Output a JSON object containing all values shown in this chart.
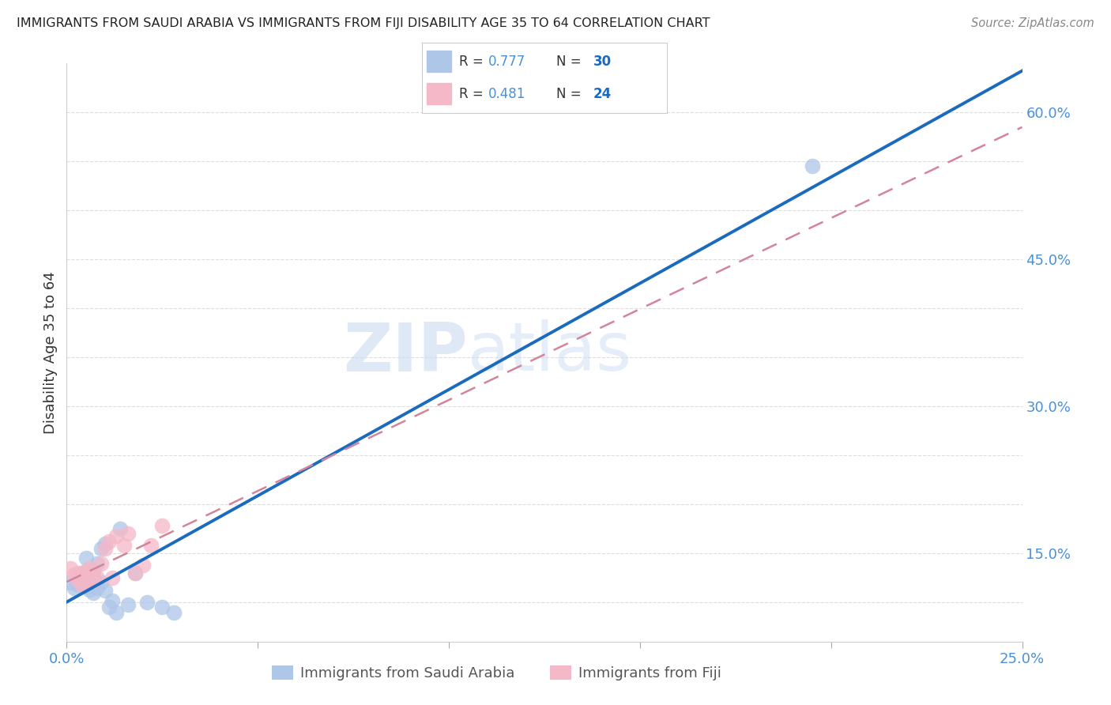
{
  "title": "IMMIGRANTS FROM SAUDI ARABIA VS IMMIGRANTS FROM FIJI DISABILITY AGE 35 TO 64 CORRELATION CHART",
  "source": "Source: ZipAtlas.com",
  "ylabel": "Disability Age 35 to 64",
  "xlim": [
    0.0,
    0.25
  ],
  "ylim": [
    0.06,
    0.65
  ],
  "x_tick_positions": [
    0.0,
    0.05,
    0.1,
    0.15,
    0.2,
    0.25
  ],
  "x_tick_labels": [
    "0.0%",
    "",
    "",
    "",
    "",
    "25.0%"
  ],
  "y_tick_positions": [
    0.1,
    0.15,
    0.2,
    0.25,
    0.3,
    0.35,
    0.4,
    0.45,
    0.5,
    0.55,
    0.6
  ],
  "y_tick_labels": [
    "",
    "15.0%",
    "",
    "",
    "30.0%",
    "",
    "",
    "45.0%",
    "",
    "",
    "60.0%"
  ],
  "saudi_color": "#aec6e8",
  "fiji_color": "#f4b8c8",
  "saudi_line_color": "#1a6bbf",
  "fiji_line_color": "#d4849a",
  "R_saudi": "0.777",
  "N_saudi": "30",
  "R_fiji": "0.481",
  "N_fiji": "24",
  "watermark_zip": "ZIP",
  "watermark_atlas": "atlas",
  "saudi_x": [
    0.001,
    0.002,
    0.003,
    0.003,
    0.004,
    0.004,
    0.005,
    0.005,
    0.006,
    0.006,
    0.006,
    0.007,
    0.007,
    0.007,
    0.008,
    0.008,
    0.009,
    0.009,
    0.01,
    0.01,
    0.011,
    0.012,
    0.013,
    0.014,
    0.016,
    0.018,
    0.021,
    0.025,
    0.028,
    0.195
  ],
  "saudi_y": [
    0.12,
    0.115,
    0.122,
    0.118,
    0.125,
    0.13,
    0.116,
    0.145,
    0.113,
    0.118,
    0.128,
    0.11,
    0.122,
    0.132,
    0.115,
    0.14,
    0.12,
    0.155,
    0.112,
    0.16,
    0.095,
    0.102,
    0.09,
    0.175,
    0.098,
    0.13,
    0.1,
    0.095,
    0.09,
    0.545
  ],
  "fiji_x": [
    0.001,
    0.002,
    0.003,
    0.003,
    0.004,
    0.004,
    0.005,
    0.005,
    0.006,
    0.006,
    0.007,
    0.007,
    0.008,
    0.009,
    0.01,
    0.011,
    0.012,
    0.013,
    0.015,
    0.016,
    0.018,
    0.02,
    0.022,
    0.025
  ],
  "fiji_y": [
    0.135,
    0.128,
    0.122,
    0.13,
    0.118,
    0.125,
    0.132,
    0.12,
    0.128,
    0.135,
    0.122,
    0.13,
    0.125,
    0.14,
    0.155,
    0.162,
    0.125,
    0.168,
    0.158,
    0.17,
    0.13,
    0.138,
    0.158,
    0.178
  ],
  "bottom_legend": [
    {
      "label": "Immigrants from Saudi Arabia",
      "color": "#aec6e8"
    },
    {
      "label": "Immigrants from Fiji",
      "color": "#f4b8c8"
    }
  ],
  "background_color": "#ffffff",
  "grid_color": "#dddddd",
  "title_color": "#222222",
  "axis_label_color": "#333333",
  "tick_color": "#4a90d9",
  "r_value_color": "#4a90d9",
  "n_value_color": "#1a6bbf"
}
